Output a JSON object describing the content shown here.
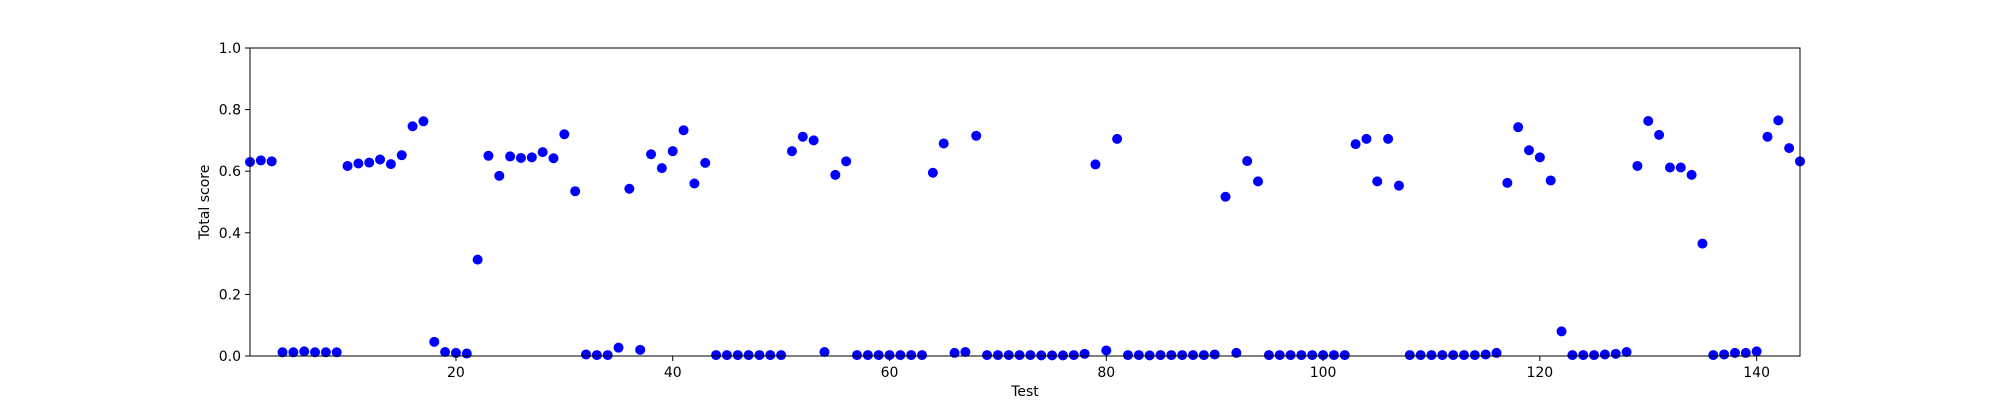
{
  "chart_data": {
    "type": "scatter",
    "title": "",
    "xlabel": "Test",
    "ylabel": "Total score",
    "xlim": [
      1,
      144
    ],
    "ylim": [
      0,
      1.0
    ],
    "xticks": [
      20,
      40,
      60,
      80,
      100,
      120,
      140
    ],
    "yticks": [
      0.0,
      0.2,
      0.4,
      0.6,
      0.8,
      1.0
    ],
    "xtick_labels": [
      "20",
      "40",
      "60",
      "80",
      "100",
      "120",
      "140"
    ],
    "ytick_labels": [
      "0.0",
      "0.2",
      "0.4",
      "0.6",
      "0.8",
      "1.0"
    ],
    "grid": false,
    "marker_color": "#0000ff",
    "series": [
      {
        "x": [
          1,
          2,
          3,
          4,
          5,
          6,
          7,
          8,
          9,
          10,
          11,
          12,
          13,
          14,
          15,
          16,
          17,
          18,
          19,
          20,
          21,
          22,
          23,
          24,
          25,
          26,
          27,
          28,
          29,
          30,
          31,
          32,
          33,
          34,
          35,
          36,
          37,
          38,
          39,
          40,
          41,
          42,
          43,
          44,
          45,
          46,
          47,
          48,
          49,
          50,
          51,
          52,
          53,
          54,
          55,
          56,
          57,
          58,
          59,
          60,
          61,
          62,
          63,
          64,
          65,
          66,
          67,
          68,
          69,
          70,
          71,
          72,
          73,
          74,
          75,
          76,
          77,
          78,
          79,
          80,
          81,
          82,
          83,
          84,
          85,
          86,
          87,
          88,
          89,
          90,
          91,
          92,
          93,
          94,
          95,
          96,
          97,
          98,
          99,
          100,
          101,
          102,
          103,
          104,
          105,
          106,
          107,
          108,
          109,
          110,
          111,
          112,
          113,
          114,
          115,
          116,
          117,
          118,
          119,
          120,
          121,
          122,
          123,
          124,
          125,
          126,
          127,
          128,
          129,
          130,
          131,
          132,
          133,
          134,
          135,
          136,
          137,
          138,
          139,
          140,
          141,
          142,
          143,
          144
        ],
        "values": [
          0.63,
          0.635,
          0.632,
          0.012,
          0.012,
          0.015,
          0.012,
          0.012,
          0.012,
          0.617,
          0.625,
          0.628,
          0.638,
          0.623,
          0.652,
          0.746,
          0.762,
          0.046,
          0.013,
          0.01,
          0.008,
          0.313,
          0.65,
          0.585,
          0.648,
          0.643,
          0.645,
          0.662,
          0.642,
          0.72,
          0.535,
          0.005,
          0.003,
          0.003,
          0.027,
          0.543,
          0.02,
          0.655,
          0.61,
          0.665,
          0.733,
          0.56,
          0.627,
          0.003,
          0.003,
          0.003,
          0.003,
          0.003,
          0.003,
          0.003,
          0.665,
          0.712,
          0.7,
          0.013,
          0.588,
          0.632,
          0.003,
          0.003,
          0.003,
          0.003,
          0.003,
          0.003,
          0.003,
          0.595,
          0.69,
          0.01,
          0.013,
          0.715,
          0.003,
          0.003,
          0.003,
          0.003,
          0.003,
          0.002,
          0.002,
          0.002,
          0.003,
          0.007,
          0.622,
          0.018,
          0.705,
          0.003,
          0.003,
          0.002,
          0.003,
          0.003,
          0.003,
          0.003,
          0.003,
          0.005,
          0.517,
          0.01,
          0.633,
          0.567,
          0.003,
          0.003,
          0.003,
          0.003,
          0.003,
          0.003,
          0.003,
          0.003,
          0.688,
          0.705,
          0.567,
          0.705,
          0.553,
          0.003,
          0.003,
          0.003,
          0.003,
          0.003,
          0.003,
          0.003,
          0.005,
          0.01,
          0.562,
          0.743,
          0.668,
          0.645,
          0.57,
          0.08,
          0.003,
          0.003,
          0.003,
          0.005,
          0.007,
          0.013,
          0.617,
          0.763,
          0.718,
          0.612,
          0.612,
          0.588,
          0.365,
          0.003,
          0.005,
          0.01,
          0.01,
          0.015,
          0.712,
          0.765,
          0.675,
          0.632
        ]
      }
    ]
  }
}
